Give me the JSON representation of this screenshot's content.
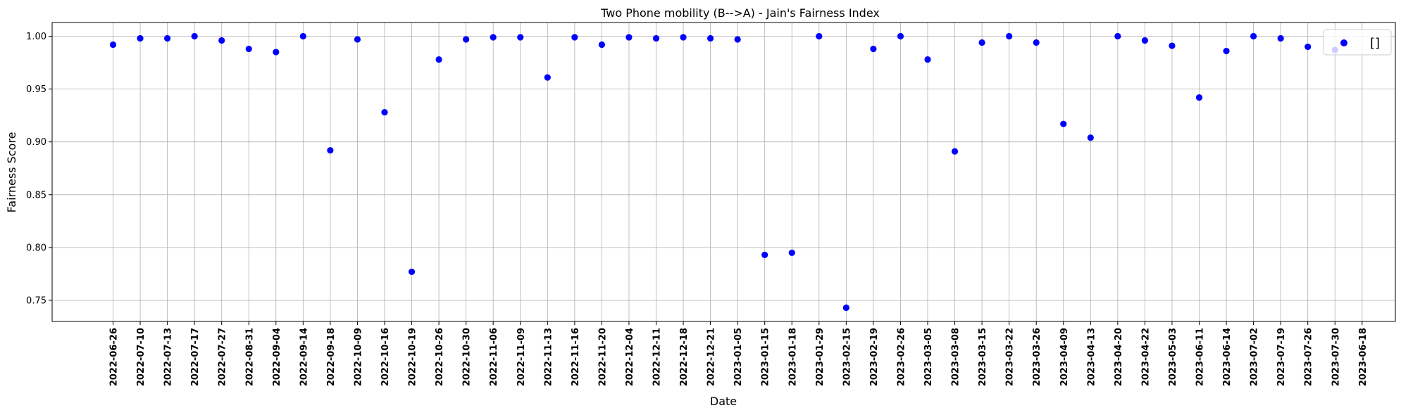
{
  "chart_data": {
    "type": "scatter",
    "title": "Two Phone mobility (B-->A) - Jain's Fairness Index",
    "xlabel": "Date",
    "ylabel": "Fairness Score",
    "ylim": [
      0.73,
      1.013
    ],
    "yticks": [
      "0.75",
      "0.80",
      "0.85",
      "0.90",
      "0.95",
      "1.00"
    ],
    "grid": true,
    "legend_position": "top-right",
    "marker_color": "#0000ff",
    "categories": [
      "2022-06-26",
      "2022-07-10",
      "2022-07-13",
      "2022-07-17",
      "2022-07-27",
      "2022-08-31",
      "2022-09-04",
      "2022-09-14",
      "2022-09-18",
      "2022-10-09",
      "2022-10-16",
      "2022-10-19",
      "2022-10-26",
      "2022-10-30",
      "2022-11-06",
      "2022-11-09",
      "2022-11-13",
      "2022-11-16",
      "2022-11-20",
      "2022-12-04",
      "2022-12-11",
      "2022-12-18",
      "2022-12-21",
      "2023-01-05",
      "2023-01-15",
      "2023-01-18",
      "2023-01-29",
      "2023-02-15",
      "2023-02-19",
      "2023-02-26",
      "2023-03-05",
      "2023-03-08",
      "2023-03-15",
      "2023-03-22",
      "2023-03-26",
      "2023-04-09",
      "2023-04-13",
      "2023-04-20",
      "2023-04-22",
      "2023-05-03",
      "2023-06-11",
      "2023-06-14",
      "2023-07-02",
      "2023-07-19",
      "2023-07-26",
      "2023-07-30",
      "2023-06-18"
    ],
    "series": [
      {
        "name": "[]",
        "values": [
          0.992,
          0.998,
          0.998,
          1.0,
          0.996,
          0.988,
          0.985,
          1.0,
          0.892,
          0.997,
          0.928,
          0.777,
          0.978,
          0.997,
          0.999,
          0.999,
          0.961,
          0.999,
          0.992,
          0.999,
          0.998,
          0.999,
          0.998,
          0.997,
          0.793,
          0.795,
          1.0,
          0.743,
          0.988,
          1.0,
          0.978,
          0.891,
          0.994,
          1.0,
          0.994,
          0.917,
          0.904,
          1.0,
          0.996,
          0.991,
          0.942,
          0.986,
          1.0,
          0.998,
          0.99,
          0.987,
          null
        ]
      }
    ]
  }
}
